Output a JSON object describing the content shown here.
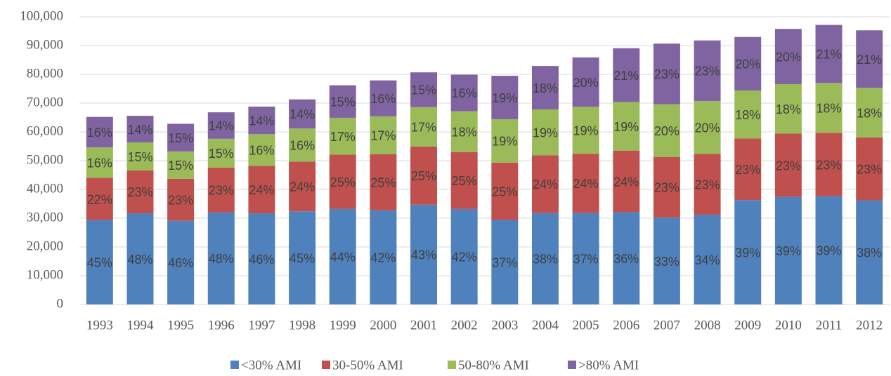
{
  "chart_data": {
    "type": "stacked_bar",
    "categories": [
      "1993",
      "1994",
      "1995",
      "1996",
      "1997",
      "1998",
      "1999",
      "2000",
      "2001",
      "2002",
      "2003",
      "2004",
      "2005",
      "2006",
      "2007",
      "2008",
      "2009",
      "2010",
      "2011",
      "2012"
    ],
    "series": [
      {
        "name": "<30% AMI",
        "color": "#4f81bd",
        "values": [
          29400,
          31700,
          29100,
          32000,
          31700,
          32400,
          33200,
          32700,
          34700,
          33200,
          29400,
          31800,
          31800,
          32100,
          30200,
          31200,
          36300,
          37400,
          37600,
          36200
        ],
        "value_labels": [
          "45%",
          "48%",
          "46%",
          "48%",
          "46%",
          "45%",
          "44%",
          "42%",
          "43%",
          "42%",
          "37%",
          "38%",
          "37%",
          "36%",
          "33%",
          "34%",
          "39%",
          "39%",
          "39%",
          "38%"
        ]
      },
      {
        "name": "30-50% AMI",
        "color": "#c0504d",
        "values": [
          14600,
          14900,
          14600,
          15600,
          16500,
          17300,
          18900,
          19500,
          20200,
          19800,
          19900,
          20100,
          20600,
          21400,
          21100,
          21100,
          21400,
          22000,
          22100,
          21900
        ],
        "value_labels": [
          "22%",
          "23%",
          "23%",
          "23%",
          "24%",
          "24%",
          "25%",
          "25%",
          "25%",
          "25%",
          "25%",
          "24%",
          "24%",
          "24%",
          "23%",
          "23%",
          "23%",
          "23%",
          "23%",
          "23%"
        ]
      },
      {
        "name": "50-80% AMI",
        "color": "#9bbb59",
        "values": [
          10600,
          9700,
          9500,
          10000,
          11000,
          11500,
          12800,
          13200,
          13700,
          14200,
          15100,
          15900,
          16300,
          16900,
          18300,
          18400,
          16700,
          17200,
          17300,
          17200
        ],
        "value_labels": [
          "16%",
          "15%",
          "15%",
          "15%",
          "16%",
          "16%",
          "17%",
          "17%",
          "17%",
          "18%",
          "19%",
          "19%",
          "19%",
          "19%",
          "20%",
          "20%",
          "18%",
          "18%",
          "18%",
          "18%"
        ]
      },
      {
        "name": ">80% AMI",
        "color": "#8064a2",
        "values": [
          10600,
          9300,
          9600,
          9200,
          9600,
          10100,
          11300,
          12500,
          12100,
          12700,
          15100,
          15100,
          17200,
          18700,
          21100,
          21100,
          18600,
          19200,
          20200,
          20000
        ],
        "value_labels": [
          "16%",
          "14%",
          "15%",
          "14%",
          "14%",
          "14%",
          "15%",
          "16%",
          "15%",
          "16%",
          "19%",
          "18%",
          "20%",
          "21%",
          "23%",
          "23%",
          "20%",
          "20%",
          "21%",
          "21%"
        ]
      }
    ],
    "ylim": [
      0,
      100000
    ],
    "yticks": [
      0,
      {
        "value": 10000,
        "label": "10,000"
      },
      {
        "value": 20000,
        "label": "20,000"
      },
      {
        "value": 30000,
        "label": "30,000"
      },
      {
        "value": 40000,
        "label": "40,000"
      },
      {
        "value": 50000,
        "label": "50,000"
      },
      {
        "value": 60000,
        "label": "60,000"
      },
      {
        "value": 70000,
        "label": "70,000"
      },
      {
        "value": 80000,
        "label": "80,000"
      },
      {
        "value": 90000,
        "label": "90,000"
      },
      {
        "value": 100000,
        "label": "100,000"
      }
    ],
    "grid": true,
    "legend": "bottom"
  }
}
